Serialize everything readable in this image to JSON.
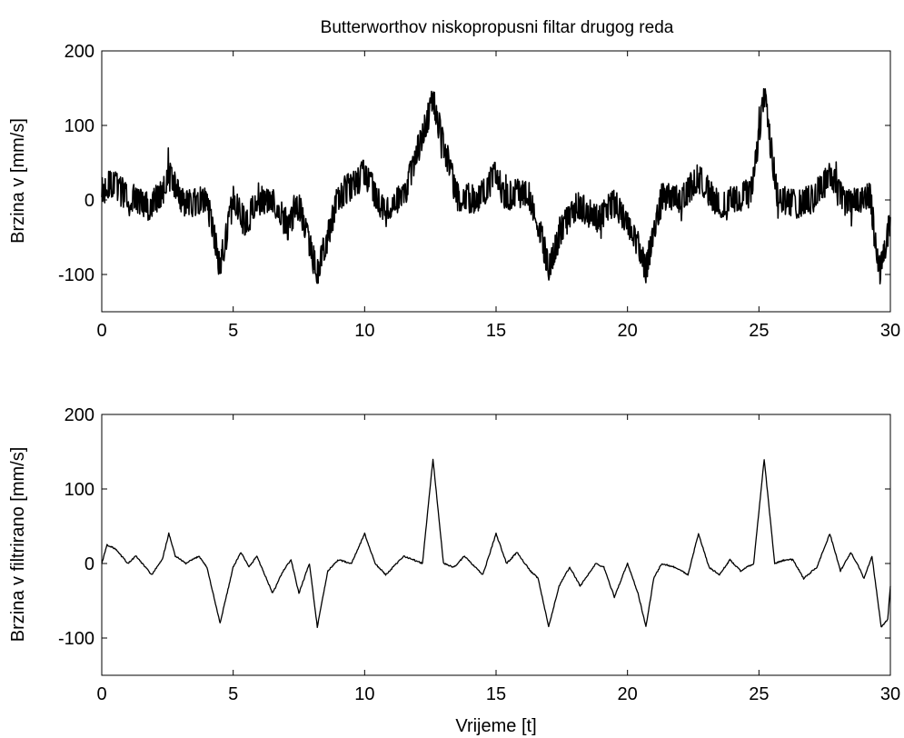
{
  "figure": {
    "title": "Butterworthov niskopropusni filtar drugog reda",
    "xlabel": "Vrijeme [t]"
  },
  "chart_data": [
    {
      "type": "line",
      "title": "Butterworthov niskopropusni filtar drugog reda",
      "xlabel": "",
      "ylabel": "Brzina v  [mm/s]",
      "xlim": [
        0,
        30
      ],
      "ylim": [
        -150,
        200
      ],
      "xticks": [
        "0",
        "5",
        "10",
        "15",
        "20",
        "25",
        "30"
      ],
      "yticks": [
        "200",
        "100",
        "0",
        "-100"
      ],
      "grid": false,
      "line_color": "#000000",
      "noise_amplitude": 20,
      "x": [
        0,
        0.3,
        1.0,
        1.8,
        2.3,
        2.55,
        2.8,
        3.2,
        4.0,
        4.5,
        5.0,
        5.5,
        5.9,
        6.5,
        7.1,
        7.5,
        8.2,
        9.0,
        10.0,
        10.7,
        11.5,
        12.6,
        13.5,
        14.3,
        15.0,
        15.3,
        16.2,
        16.6,
        17.0,
        17.5,
        18.1,
        18.8,
        19.5,
        20.3,
        20.7,
        21.3,
        22.0,
        22.7,
        23.4,
        24.0,
        24.7,
        25.2,
        25.7,
        26.4,
        27.0,
        27.7,
        28.3,
        28.8,
        29.2,
        29.6,
        30.0
      ],
      "y": [
        10,
        25,
        5,
        -10,
        10,
        40,
        15,
        -5,
        0,
        -90,
        0,
        -35,
        5,
        -5,
        -35,
        -5,
        -100,
        5,
        35,
        -10,
        5,
        135,
        5,
        0,
        35,
        5,
        10,
        -30,
        -90,
        -40,
        -5,
        -25,
        -5,
        -50,
        -95,
        5,
        0,
        30,
        -5,
        0,
        10,
        140,
        5,
        -5,
        0,
        30,
        -5,
        0,
        10,
        -95,
        -30
      ]
    },
    {
      "type": "line",
      "title": "",
      "xlabel": "Vrijeme [t]",
      "ylabel": "Brzina v filtrirano [mm/s]",
      "xlim": [
        0,
        30
      ],
      "ylim": [
        -150,
        200
      ],
      "xticks": [
        "0",
        "5",
        "10",
        "15",
        "20",
        "25",
        "30"
      ],
      "yticks": [
        "200",
        "100",
        "0",
        "-100"
      ],
      "grid": false,
      "line_color": "#000000",
      "noise_amplitude": 2,
      "x": [
        0,
        0.2,
        0.5,
        1.0,
        1.3,
        1.9,
        2.3,
        2.55,
        2.8,
        3.2,
        3.7,
        4.0,
        4.5,
        5.0,
        5.3,
        5.6,
        5.9,
        6.5,
        6.9,
        7.2,
        7.5,
        7.9,
        8.2,
        8.6,
        9.0,
        9.5,
        10.0,
        10.4,
        10.8,
        11.5,
        12.2,
        12.6,
        13.0,
        13.4,
        13.8,
        14.2,
        14.5,
        15.0,
        15.4,
        15.8,
        16.3,
        16.6,
        17.0,
        17.4,
        17.8,
        18.2,
        18.5,
        18.8,
        19.1,
        19.5,
        20.0,
        20.4,
        20.7,
        21.0,
        21.3,
        21.8,
        22.3,
        22.7,
        23.1,
        23.5,
        23.9,
        24.3,
        24.8,
        25.2,
        25.6,
        26.0,
        26.3,
        26.7,
        27.2,
        27.7,
        28.1,
        28.5,
        28.8,
        29.0,
        29.3,
        29.65,
        29.9,
        30.0
      ],
      "y": [
        0,
        25,
        20,
        0,
        10,
        -15,
        5,
        40,
        10,
        0,
        10,
        -5,
        -80,
        -5,
        15,
        -5,
        10,
        -40,
        -10,
        5,
        -40,
        0,
        -85,
        -10,
        5,
        0,
        40,
        0,
        -15,
        10,
        0,
        140,
        0,
        -5,
        10,
        -5,
        -15,
        40,
        0,
        15,
        -10,
        -20,
        -85,
        -30,
        -5,
        -30,
        -15,
        0,
        -5,
        -45,
        0,
        -40,
        -85,
        -20,
        0,
        -5,
        -15,
        40,
        -5,
        -15,
        5,
        -10,
        0,
        140,
        0,
        5,
        5,
        -20,
        -5,
        40,
        -10,
        15,
        -5,
        -20,
        10,
        -85,
        -75,
        -30
      ]
    }
  ]
}
